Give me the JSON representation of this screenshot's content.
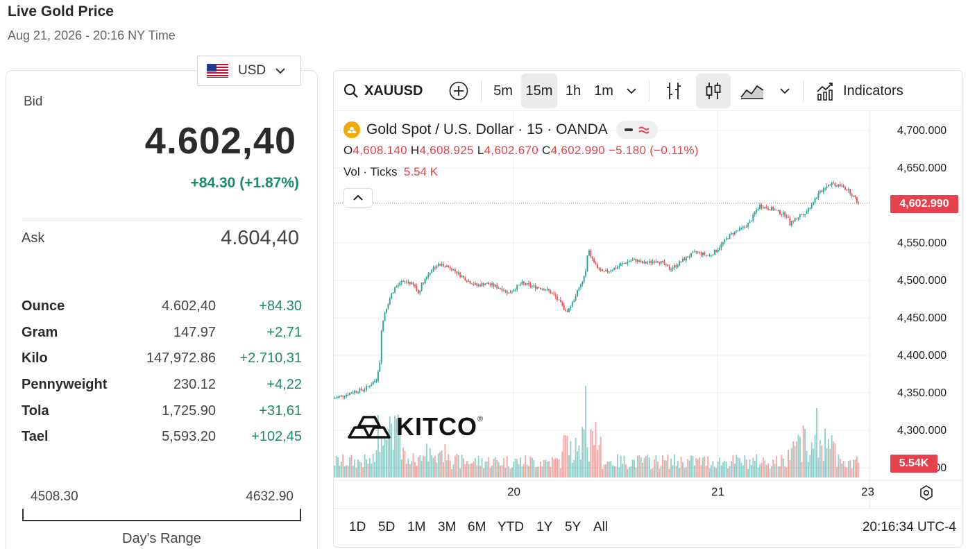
{
  "header": {
    "title": "Live Gold Price",
    "subtitle": "Aug 21, 2026 - 20:16 NY Time"
  },
  "currency": {
    "selected": "USD",
    "flag_icon": "us-flag-icon"
  },
  "quote": {
    "bid_label": "Bid",
    "bid_value": "4.602,40",
    "bid_change": "+84.30 (+1.87%)",
    "ask_label": "Ask",
    "ask_value": "4.604,40"
  },
  "units": [
    {
      "name": "Ounce",
      "value": "4.602,40",
      "change": "+84.30"
    },
    {
      "name": "Gram",
      "value": "147.97",
      "change": "+2,71"
    },
    {
      "name": "Kilo",
      "value": "147,972.86",
      "change": "+2.710,31"
    },
    {
      "name": "Pennyweight",
      "value": "230.12",
      "change": "+4,22"
    },
    {
      "name": "Tola",
      "value": "1,725.90",
      "change": "+31,61"
    },
    {
      "name": "Tael",
      "value": "5,593.20",
      "change": "+102,45"
    }
  ],
  "day_range": {
    "low": "4508.30",
    "high": "4632.90",
    "label": "Day's Range"
  },
  "toolbar": {
    "symbol": "XAUUSD",
    "intervals": [
      "5m",
      "15m",
      "1h",
      "1m"
    ],
    "active_interval": "15m",
    "indicators_label": "Indicators"
  },
  "legend": {
    "title": "Gold Spot / U.S. Dollar · 15 · OANDA",
    "o_label": "O",
    "o_value": "4,608.140",
    "h_label": "H",
    "h_value": "4,608.925",
    "l_label": "L",
    "l_value": "4,602.670",
    "c_label": "C",
    "c_value": "4,602.990",
    "change": "−5.180 (−0.11%)",
    "vol_label": "Vol · Ticks",
    "vol_value": "5.54 K"
  },
  "price_axis": {
    "labels": [
      "4,700.000",
      "4,650.000",
      "4,550.000",
      "4,500.000",
      "4,450.000",
      "4,400.000",
      "4,350.000",
      "4,300.000",
      "4,250.000"
    ],
    "last_price_tag": "4,602.990",
    "volume_tag": "5.54K"
  },
  "time_axis": {
    "labels": [
      "20",
      "21",
      "23"
    ]
  },
  "ranges": {
    "items": [
      "1D",
      "5D",
      "1M",
      "3M",
      "6M",
      "YTD",
      "1Y",
      "5Y",
      "All"
    ],
    "clock": "20:16:34 UTC-4"
  },
  "logo": {
    "text": "KITCO",
    "mark": "®"
  },
  "colors": {
    "up": "#26a69a",
    "down": "#ef5350",
    "accent_red": "#e8414e",
    "positive_text": "#1a8a6e",
    "gold": "#f2a900"
  },
  "chart_data": {
    "type": "candlestick",
    "symbol": "XAUUSD",
    "interval": "15m",
    "ylim": [
      4250,
      4710
    ],
    "x_ticks": [
      "20",
      "21",
      "23"
    ],
    "last_close": 4602.99,
    "close_path": [
      [
        0,
        4343
      ],
      [
        6,
        4347
      ],
      [
        12,
        4352
      ],
      [
        18,
        4355
      ],
      [
        22,
        4362
      ],
      [
        25,
        4368
      ],
      [
        27,
        4392
      ],
      [
        28,
        4435
      ],
      [
        30,
        4458
      ],
      [
        32,
        4470
      ],
      [
        34,
        4482
      ],
      [
        36,
        4490
      ],
      [
        40,
        4497
      ],
      [
        44,
        4498
      ],
      [
        48,
        4492
      ],
      [
        50,
        4483
      ],
      [
        52,
        4495
      ],
      [
        55,
        4505
      ],
      [
        58,
        4515
      ],
      [
        61,
        4520
      ],
      [
        65,
        4521
      ],
      [
        70,
        4516
      ],
      [
        75,
        4507
      ],
      [
        80,
        4499
      ],
      [
        85,
        4493
      ],
      [
        90,
        4496
      ],
      [
        95,
        4493
      ],
      [
        100,
        4489
      ],
      [
        104,
        4483
      ],
      [
        108,
        4490
      ],
      [
        112,
        4496
      ],
      [
        118,
        4492
      ],
      [
        124,
        4490
      ],
      [
        128,
        4486
      ],
      [
        132,
        4478
      ],
      [
        136,
        4466
      ],
      [
        138,
        4458
      ],
      [
        140,
        4462
      ],
      [
        142,
        4470
      ],
      [
        145,
        4485
      ],
      [
        148,
        4498
      ],
      [
        150,
        4512
      ],
      [
        151,
        4532
      ],
      [
        152,
        4538
      ],
      [
        154,
        4528
      ],
      [
        156,
        4520
      ],
      [
        160,
        4510
      ],
      [
        164,
        4513
      ],
      [
        168,
        4517
      ],
      [
        172,
        4522
      ],
      [
        176,
        4526
      ],
      [
        180,
        4527
      ],
      [
        184,
        4523
      ],
      [
        188,
        4524
      ],
      [
        192,
        4527
      ],
      [
        196,
        4523
      ],
      [
        200,
        4515
      ],
      [
        204,
        4520
      ],
      [
        208,
        4527
      ],
      [
        212,
        4533
      ],
      [
        216,
        4538
      ],
      [
        220,
        4535
      ],
      [
        224,
        4533
      ],
      [
        228,
        4540
      ],
      [
        232,
        4550
      ],
      [
        236,
        4560
      ],
      [
        240,
        4566
      ],
      [
        244,
        4570
      ],
      [
        248,
        4577
      ],
      [
        251,
        4590
      ],
      [
        254,
        4600
      ],
      [
        258,
        4597
      ],
      [
        262,
        4595
      ],
      [
        266,
        4590
      ],
      [
        270,
        4587
      ],
      [
        272,
        4575
      ],
      [
        274,
        4580
      ],
      [
        278,
        4587
      ],
      [
        282,
        4592
      ],
      [
        285,
        4602
      ],
      [
        288,
        4612
      ],
      [
        291,
        4620
      ],
      [
        294,
        4627
      ],
      [
        297,
        4630
      ],
      [
        300,
        4627
      ],
      [
        303,
        4625
      ],
      [
        306,
        4622
      ],
      [
        309,
        4615
      ],
      [
        312,
        4606
      ],
      [
        313,
        4603
      ]
    ]
  }
}
